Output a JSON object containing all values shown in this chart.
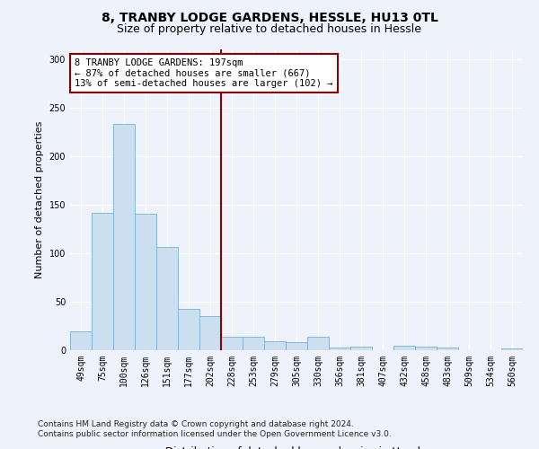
{
  "title": "8, TRANBY LODGE GARDENS, HESSLE, HU13 0TL",
  "subtitle": "Size of property relative to detached houses in Hessle",
  "xlabel": "Distribution of detached houses by size in Hessle",
  "ylabel": "Number of detached properties",
  "bar_color": "#ccdff0",
  "bar_edge_color": "#7aafd4",
  "categories": [
    "49sqm",
    "75sqm",
    "100sqm",
    "126sqm",
    "151sqm",
    "177sqm",
    "202sqm",
    "228sqm",
    "253sqm",
    "279sqm",
    "305sqm",
    "330sqm",
    "356sqm",
    "381sqm",
    "407sqm",
    "432sqm",
    "458sqm",
    "483sqm",
    "509sqm",
    "534sqm",
    "560sqm"
  ],
  "values": [
    19,
    142,
    233,
    141,
    106,
    43,
    35,
    14,
    14,
    9,
    8,
    14,
    3,
    4,
    0,
    5,
    4,
    3,
    0,
    0,
    2
  ],
  "vline_pos": 6.5,
  "vline_color": "#8b0000",
  "annotation_text": "8 TRANBY LODGE GARDENS: 197sqm\n← 87% of detached houses are smaller (667)\n13% of semi-detached houses are larger (102) →",
  "annotation_box_color": "white",
  "annotation_box_edge_color": "#8b0000",
  "ylim": [
    0,
    310
  ],
  "yticks": [
    0,
    50,
    100,
    150,
    200,
    250,
    300
  ],
  "footer_line1": "Contains HM Land Registry data © Crown copyright and database right 2024.",
  "footer_line2": "Contains public sector information licensed under the Open Government Licence v3.0.",
  "background_color": "#eef2fb",
  "grid_color": "#ffffff",
  "title_fontsize": 10,
  "subtitle_fontsize": 9,
  "tick_fontsize": 7,
  "ylabel_fontsize": 8,
  "xlabel_fontsize": 8.5,
  "annotation_fontsize": 7.5,
  "footer_fontsize": 6.5
}
